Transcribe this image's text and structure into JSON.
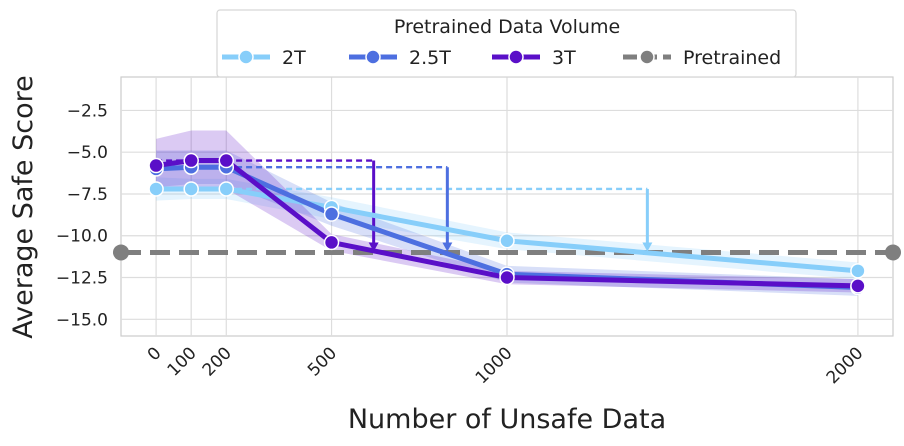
{
  "chart_data": {
    "type": "line",
    "xlabel": "Number of Unsafe Data",
    "ylabel": "Average Safe Score",
    "x": [
      0,
      100,
      200,
      500,
      1000,
      2000
    ],
    "x_tick_labels": [
      "0",
      "100",
      "200",
      "500",
      "1000",
      "2000"
    ],
    "xlim": [
      -100,
      2100
    ],
    "ylim": [
      -16.0,
      -0.5
    ],
    "y_ticks": [
      -2.5,
      -5.0,
      -7.5,
      -10.0,
      -12.5,
      -15.0
    ],
    "y_tick_labels": [
      "−2.5",
      "−5.0",
      "−7.5",
      "−10.0",
      "−12.5",
      "−15.0"
    ],
    "grid": true,
    "legend": {
      "title": "Pretrained Data Volume",
      "position": "top-center"
    },
    "series": [
      {
        "name": "2T",
        "color": "#87cefa",
        "values": [
          -7.2,
          -7.2,
          -7.2,
          -8.3,
          -10.3,
          -12.1
        ],
        "band_lower": [
          -7.9,
          -7.8,
          -7.8,
          -9.0,
          -10.8,
          -12.6
        ],
        "band_upper": [
          -6.5,
          -6.6,
          -6.6,
          -7.7,
          -9.8,
          -11.6
        ],
        "reference_level": -7.2,
        "drop_x": 1400
      },
      {
        "name": "2.5T",
        "color": "#4d6fe0",
        "values": [
          -6.0,
          -5.9,
          -5.9,
          -8.7,
          -12.3,
          -13.1
        ],
        "band_lower": [
          -7.1,
          -6.9,
          -6.9,
          -9.4,
          -12.8,
          -13.6
        ],
        "band_upper": [
          -4.9,
          -4.9,
          -4.9,
          -8.0,
          -11.8,
          -12.6
        ],
        "reference_level": -5.9,
        "drop_x": 830
      },
      {
        "name": "3T",
        "color": "#5a0fc8",
        "values": [
          -5.8,
          -5.5,
          -5.5,
          -10.4,
          -12.5,
          -13.0
        ],
        "band_lower": [
          -7.3,
          -7.2,
          -7.2,
          -10.9,
          -12.9,
          -13.4
        ],
        "band_upper": [
          -4.2,
          -3.7,
          -3.7,
          -9.9,
          -12.1,
          -12.6
        ],
        "reference_level": -5.5,
        "drop_x": 620
      },
      {
        "name": "Pretrained",
        "color": "#7f7f7f",
        "constant": -11.0
      }
    ]
  }
}
